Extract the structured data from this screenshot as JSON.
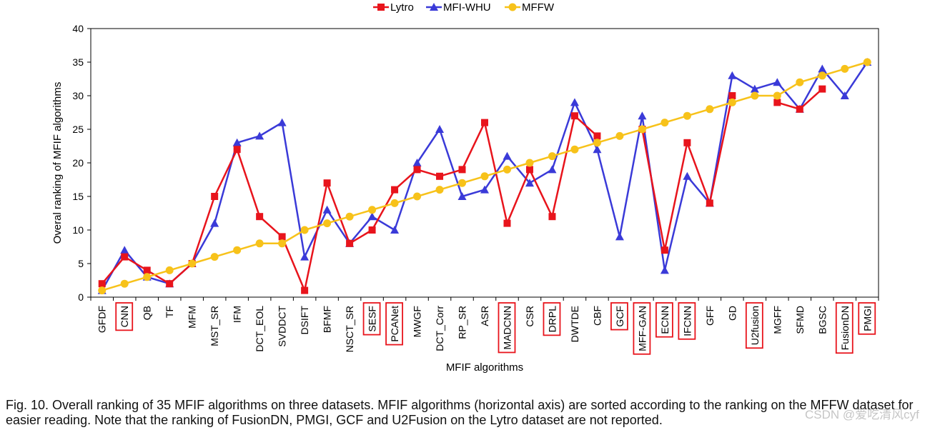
{
  "chart_data": {
    "type": "line",
    "xlabel": "MFIF algorithms",
    "ylabel": "Overal ranking of MFIF algorithms",
    "ylim": [
      0,
      40
    ],
    "yticks": [
      0,
      5,
      10,
      15,
      20,
      25,
      30,
      35,
      40
    ],
    "legend_position": "top-center",
    "categories": [
      "GFDF",
      "CNN",
      "QB",
      "TF",
      "MFM",
      "MST_SR",
      "IFM",
      "DCT_EOL",
      "SVDDCT",
      "DSIFT",
      "BFMF",
      "NSCT_SR",
      "SESF",
      "PCANet",
      "MWGF",
      "DCT_Corr",
      "RP_SR",
      "ASR",
      "MADCNN",
      "CSR",
      "DRPL",
      "DWTDE",
      "CBF",
      "GCF",
      "MFF-GAN",
      "ECNN",
      "IFCNN",
      "GFF",
      "GD",
      "U2fusion",
      "MGFF",
      "SFMD",
      "BGSC",
      "FusionDN",
      "PMGI"
    ],
    "highlighted": [
      "CNN",
      "SESF",
      "PCANet",
      "MADCNN",
      "DRPL",
      "GCF",
      "MFF-GAN",
      "ECNN",
      "IFCNN",
      "U2fusion",
      "FusionDN",
      "PMGI"
    ],
    "series": [
      {
        "name": "Lytro",
        "color": "#e8141c",
        "marker": "square",
        "values": [
          2,
          6,
          4,
          2,
          5,
          15,
          22,
          12,
          9,
          1,
          17,
          8,
          10,
          16,
          19,
          18,
          19,
          26,
          11,
          19,
          12,
          27,
          24,
          null,
          25,
          7,
          23,
          14,
          30,
          null,
          29,
          28,
          31,
          null,
          null
        ]
      },
      {
        "name": "MFI-WHU",
        "color": "#3a3ad8",
        "marker": "triangle",
        "values": [
          1,
          7,
          3,
          2,
          5,
          11,
          23,
          24,
          26,
          6,
          13,
          8,
          12,
          10,
          20,
          25,
          15,
          16,
          21,
          17,
          19,
          29,
          22,
          9,
          27,
          4,
          18,
          14,
          33,
          31,
          32,
          28,
          34,
          30,
          35
        ]
      },
      {
        "name": "MFFW",
        "color": "#f7c21a",
        "marker": "circle",
        "values": [
          1,
          2,
          3,
          4,
          5,
          6,
          7,
          8,
          8,
          10,
          11,
          12,
          13,
          14,
          15,
          16,
          17,
          18,
          19,
          20,
          21,
          22,
          23,
          24,
          25,
          26,
          27,
          28,
          29,
          30,
          30,
          32,
          33,
          34,
          35
        ]
      }
    ]
  },
  "caption": "Fig. 10. Overall ranking of 35 MFIF algorithms on three datasets. MFIF algorithms (horizontal axis) are sorted according to the ranking on the MFFW dataset for easier reading. Note that the ranking of FusionDN, PMGI, GCF and U2Fusion on the Lytro dataset are not reported.",
  "watermark": "CSDN @爱吃清风cyf"
}
